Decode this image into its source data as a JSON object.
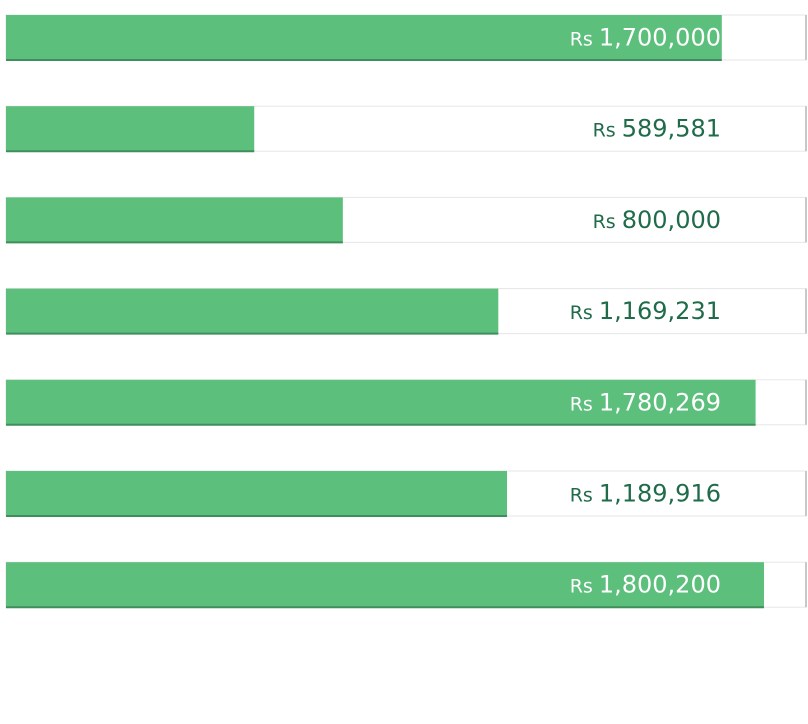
{
  "chart_data": {
    "type": "bar",
    "orientation": "horizontal",
    "currency_prefix": "Rs",
    "values": [
      1700000,
      589581,
      800000,
      1169231,
      1780269,
      1189916,
      1800200
    ],
    "labels": [
      "1,700,000",
      "589,581",
      "800,000",
      "1,169,231",
      "1,780,269",
      "1,189,916",
      "1,800,200"
    ],
    "xlim": [
      0,
      1900000
    ],
    "grid": true,
    "colors": {
      "bar": "#5cbf7c",
      "label_on_bar": "#ffffff",
      "label_off_bar": "#1f6b4a"
    }
  }
}
